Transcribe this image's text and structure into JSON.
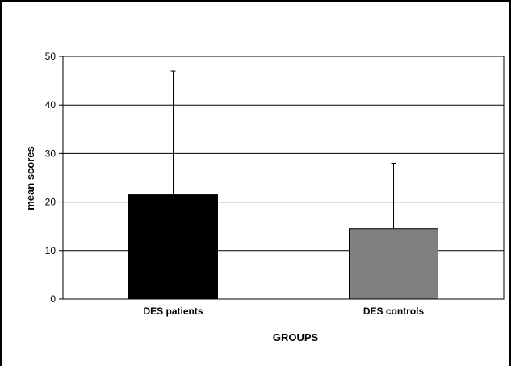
{
  "chart_data": {
    "type": "bar",
    "title": "",
    "xlabel": "GROUPS",
    "ylabel": "mean scores",
    "categories": [
      "DES patients",
      "DES controls"
    ],
    "values": [
      21.5,
      14.5
    ],
    "error_upper": [
      47,
      28
    ],
    "ylim": [
      0,
      50
    ],
    "yticks": [
      0,
      10,
      20,
      30,
      40,
      50
    ],
    "grid": true,
    "legend": "none",
    "bar_colors": [
      "#000000",
      "#808080"
    ]
  }
}
